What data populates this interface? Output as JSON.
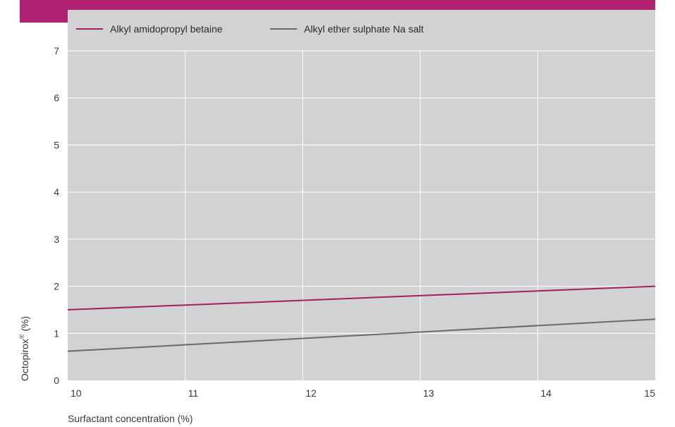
{
  "colors": {
    "banner": "#b02171",
    "plot_bg": "#d2d2d4",
    "grid": "#ffffff",
    "series_1": "#a3205f",
    "series_2": "#6a6a6c"
  },
  "chart_data": {
    "type": "line",
    "title": "",
    "xlabel": "Surfactant concentration (%)",
    "ylabel": {
      "base": "Octopirox",
      "superscript": "®",
      "suffix": " (%)"
    },
    "xlim": [
      10,
      15
    ],
    "ylim": [
      0,
      7
    ],
    "x_ticks": [
      "10",
      "11",
      "12",
      "13",
      "14",
      "15"
    ],
    "y_ticks": [
      "0",
      "1",
      "2",
      "3",
      "4",
      "5",
      "6",
      "7"
    ],
    "grid": true,
    "legend_position": "top",
    "series": [
      {
        "name": "Alkyl amidopropyl betaine",
        "x": [
          10,
          15
        ],
        "y": [
          1.5,
          2.0
        ]
      },
      {
        "name": "Alkyl ether sulphate Na salt",
        "x": [
          10,
          15
        ],
        "y": [
          0.62,
          1.3
        ]
      }
    ]
  }
}
